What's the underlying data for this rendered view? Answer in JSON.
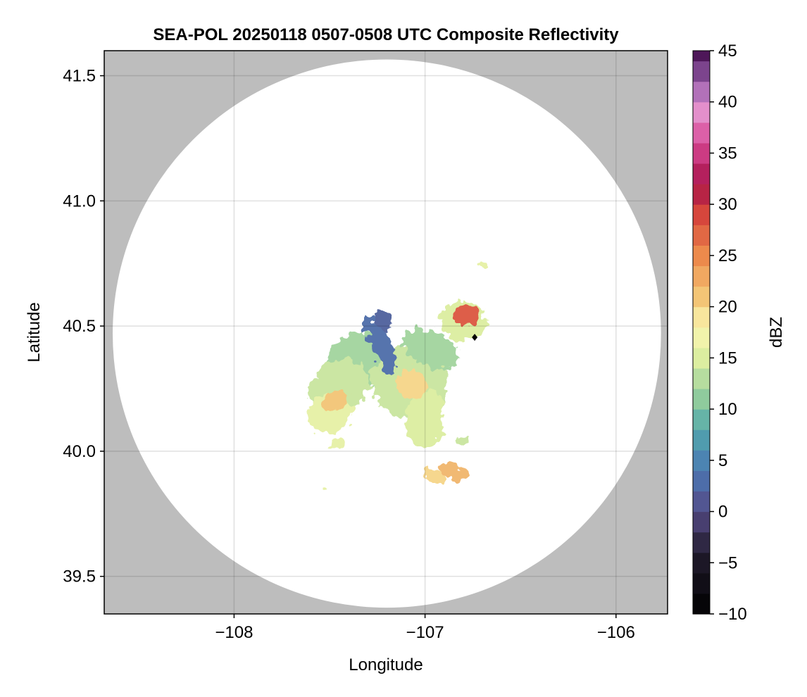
{
  "chart_data": {
    "type": "heatmap",
    "title": "SEA-POL 20250118 0507-0508 UTC Composite Reflectivity",
    "xlabel": "Longitude",
    "ylabel": "Latitude",
    "xlim": [
      -108.68,
      -105.73
    ],
    "ylim": [
      39.35,
      41.6
    ],
    "xticks": [
      -108,
      -107,
      -106
    ],
    "xtick_labels": [
      "−108",
      "−107",
      "−106"
    ],
    "yticks": [
      39.5,
      40.0,
      40.5,
      41.0,
      41.5
    ],
    "ytick_labels": [
      "39.5",
      "40.0",
      "40.5",
      "41.0",
      "41.5"
    ],
    "grid": true,
    "background_color": "#bdbdbd",
    "radar_coverage": {
      "center_lon": -107.2,
      "center_lat": 40.47,
      "radius_deg_lat": 1.095,
      "color": "#ffffff"
    },
    "radar_site": {
      "lon": -106.74,
      "lat": 40.455,
      "marker": "diamond"
    },
    "colorbar": {
      "label": "dBZ",
      "range": [
        -10,
        45
      ],
      "step": 2,
      "ticks": [
        -10,
        -5,
        0,
        5,
        10,
        15,
        20,
        25,
        30,
        35,
        40,
        45
      ],
      "tick_labels": [
        "−10",
        "−5",
        "0",
        "5",
        "10",
        "15",
        "20",
        "25",
        "30",
        "35",
        "40",
        "45"
      ],
      "colormap": "spectral-r",
      "colormap_stops": [
        [
          -10,
          "#000000"
        ],
        [
          -4,
          "#221c2e"
        ],
        [
          0,
          "#554a86"
        ],
        [
          4,
          "#4a78b4"
        ],
        [
          8,
          "#52a8ac"
        ],
        [
          11,
          "#8fcb9d"
        ],
        [
          15,
          "#dceea0"
        ],
        [
          18,
          "#fbf6b0"
        ],
        [
          21,
          "#f3c576"
        ],
        [
          25,
          "#ec8a4c"
        ],
        [
          29,
          "#d6463c"
        ],
        [
          32,
          "#a8134a"
        ],
        [
          36,
          "#d84896"
        ],
        [
          39,
          "#e38fcb"
        ],
        [
          42,
          "#9a62b0"
        ],
        [
          45,
          "#3f0848"
        ]
      ]
    },
    "echo_regions": [
      {
        "name": "main-northwest-lobe",
        "center": [
          -107.35,
          40.36
        ],
        "radius": [
          0.16,
          0.11
        ],
        "rotation_deg": 20,
        "dbz": 12
      },
      {
        "name": "main-west-lobe",
        "center": [
          -107.45,
          40.26
        ],
        "radius": [
          0.17,
          0.1
        ],
        "rotation_deg": 35,
        "dbz": 14
      },
      {
        "name": "main-southwest-lobe",
        "center": [
          -107.5,
          40.15
        ],
        "radius": [
          0.12,
          0.08
        ],
        "rotation_deg": 30,
        "dbz": 16
      },
      {
        "name": "main-central-body",
        "center": [
          -107.08,
          40.28
        ],
        "radius": [
          0.2,
          0.15
        ],
        "rotation_deg": -10,
        "dbz": 14
      },
      {
        "name": "main-east-arm",
        "center": [
          -106.97,
          40.41
        ],
        "radius": [
          0.16,
          0.07
        ],
        "rotation_deg": -25,
        "dbz": 12
      },
      {
        "name": "main-south-arm",
        "center": [
          -107.0,
          40.13
        ],
        "radius": [
          0.1,
          0.12
        ],
        "rotation_deg": 0,
        "dbz": 15
      },
      {
        "name": "low-reflectivity-band",
        "center": [
          -107.23,
          40.42
        ],
        "radius": [
          0.05,
          0.13
        ],
        "rotation_deg": 25,
        "dbz": 3
      },
      {
        "name": "northern-finger",
        "center": [
          -107.22,
          40.52
        ],
        "radius": [
          0.04,
          0.05
        ],
        "rotation_deg": 15,
        "dbz": 2
      },
      {
        "name": "enhanced-core-west",
        "center": [
          -107.47,
          40.2
        ],
        "radius": [
          0.07,
          0.04
        ],
        "rotation_deg": 25,
        "dbz": 21
      },
      {
        "name": "enhanced-core-central",
        "center": [
          -107.07,
          40.27
        ],
        "radius": [
          0.08,
          0.06
        ],
        "rotation_deg": 0,
        "dbz": 20
      },
      {
        "name": "northeast-cell",
        "center": [
          -106.8,
          40.52
        ],
        "radius": [
          0.12,
          0.08
        ],
        "rotation_deg": -10,
        "dbz": 15
      },
      {
        "name": "northeast-cell-core",
        "center": [
          -106.78,
          40.54
        ],
        "radius": [
          0.07,
          0.04
        ],
        "rotation_deg": 0,
        "dbz": 28
      },
      {
        "name": "small-cell-north",
        "center": [
          -106.69,
          40.74
        ],
        "radius": [
          0.03,
          0.015
        ],
        "rotation_deg": 0,
        "dbz": 16
      },
      {
        "name": "southern-band-west",
        "center": [
          -106.95,
          39.9
        ],
        "radius": [
          0.06,
          0.025
        ],
        "rotation_deg": -15,
        "dbz": 20
      },
      {
        "name": "southern-band-east",
        "center": [
          -106.85,
          39.92
        ],
        "radius": [
          0.08,
          0.03
        ],
        "rotation_deg": -20,
        "dbz": 22
      },
      {
        "name": "southern-fragment-west",
        "center": [
          -107.45,
          40.03
        ],
        "radius": [
          0.04,
          0.02
        ],
        "rotation_deg": 0,
        "dbz": 16
      },
      {
        "name": "southern-fragment-east",
        "center": [
          -106.8,
          40.04
        ],
        "radius": [
          0.04,
          0.015
        ],
        "rotation_deg": -10,
        "dbz": 14
      },
      {
        "name": "isolated-echo-southwest",
        "center": [
          -107.53,
          39.84
        ],
        "radius": [
          0.015,
          0.01
        ],
        "rotation_deg": 0,
        "dbz": 16
      }
    ]
  }
}
